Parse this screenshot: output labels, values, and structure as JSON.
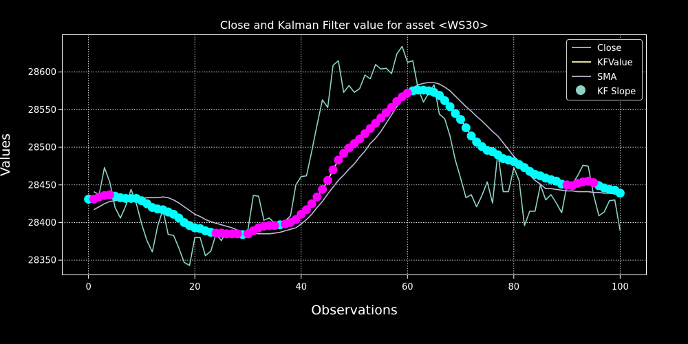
{
  "chart_data": {
    "type": "line",
    "title": "Close and Kalman Filter value for asset <WS30>",
    "xlabel": "Observations",
    "ylabel": "Values",
    "xlim": [
      -5,
      105
    ],
    "ylim": [
      28330,
      28650
    ],
    "xticks": [
      0,
      20,
      40,
      60,
      80,
      100
    ],
    "yticks": [
      28350,
      28400,
      28450,
      28500,
      28550,
      28600
    ],
    "grid": true,
    "legend_position": "top-right",
    "legend": [
      "Close",
      "KFValue",
      "SMA",
      "KF Slope"
    ],
    "colors": {
      "close": "#8dd3c7",
      "kfvalue": "#ffffb3",
      "sma": "#bebada",
      "slope_legend": "#8dd3c7",
      "slope_up": "#ff00ff",
      "slope_down": "#00ffff"
    },
    "series": [
      {
        "name": "Close",
        "x": [
          1,
          2,
          3,
          4,
          5,
          6,
          7,
          8,
          9,
          10,
          11,
          12,
          13,
          14,
          15,
          16,
          17,
          18,
          19,
          20,
          21,
          22,
          23,
          24,
          25,
          26,
          27,
          28,
          29,
          30,
          31,
          32,
          33,
          34,
          35,
          36,
          37,
          38,
          39,
          40,
          41,
          42,
          43,
          44,
          45,
          46,
          47,
          48,
          49,
          50,
          51,
          52,
          53,
          54,
          55,
          56,
          57,
          58,
          59,
          60,
          61,
          62,
          63,
          64,
          65,
          66,
          67,
          68,
          69,
          70,
          71,
          72,
          73,
          74,
          75,
          76,
          77,
          78,
          79,
          80,
          81,
          82,
          83,
          84,
          85,
          86,
          87,
          88,
          89,
          90,
          91,
          92,
          93,
          94,
          95,
          96,
          97,
          98,
          99,
          100
        ],
        "values": [
          28441,
          28437,
          28473,
          28454,
          28420,
          28406,
          28422,
          28444,
          28425,
          28398,
          28376,
          28361,
          28395,
          28417,
          28384,
          28383,
          28366,
          28347,
          28343,
          28380,
          28380,
          28356,
          28362,
          28385,
          28376,
          28389,
          28389,
          28384,
          28386,
          28391,
          28436,
          28435,
          28403,
          28406,
          28399,
          28395,
          28402,
          28409,
          28450,
          28461,
          28462,
          28495,
          28530,
          28563,
          28553,
          28609,
          28615,
          28573,
          28582,
          28573,
          28578,
          28596,
          28591,
          28610,
          28604,
          28605,
          28598,
          28624,
          28634,
          28613,
          28615,
          28578,
          28560,
          28572,
          28583,
          28544,
          28538,
          28515,
          28483,
          28459,
          28433,
          28437,
          28421,
          28436,
          28454,
          28426,
          28493,
          28441,
          28441,
          28473,
          28456,
          28396,
          28415,
          28415,
          28450,
          28430,
          28437,
          28426,
          28413,
          28450,
          28451,
          28462,
          28476,
          28475,
          28437,
          28409,
          28414,
          28429,
          28430,
          28389
        ]
      },
      {
        "name": "KFValue",
        "x": [
          0,
          1,
          2,
          3,
          4,
          5,
          6,
          7,
          8,
          9,
          10,
          11,
          12,
          13,
          14,
          15,
          16,
          17,
          18,
          19,
          20,
          21,
          22,
          23,
          24,
          25,
          26,
          27,
          28,
          29,
          30,
          31,
          32,
          33,
          34,
          35,
          36,
          37,
          38,
          39,
          40,
          41,
          42,
          43,
          44,
          45,
          46,
          47,
          48,
          49,
          50,
          51,
          52,
          53,
          54,
          55,
          56,
          57,
          58,
          59,
          60,
          61,
          62,
          63,
          64,
          65,
          66,
          67,
          68,
          69,
          70,
          71,
          72,
          73,
          74,
          75,
          76,
          77,
          78,
          79,
          80,
          81,
          82,
          83,
          84,
          85,
          86,
          87,
          88,
          89,
          90,
          91,
          92,
          93,
          94,
          95,
          96,
          97,
          98,
          99,
          100
        ],
        "values": [
          28431,
          28431,
          28434,
          28436,
          28437,
          28435,
          28433,
          28432,
          28432,
          28432,
          28429,
          28425,
          28420,
          28418,
          28417,
          28414,
          28411,
          28406,
          28400,
          28396,
          28393,
          28392,
          28389,
          28387,
          28386,
          28386,
          28385,
          28385,
          28385,
          28384,
          28385,
          28389,
          28393,
          28395,
          28396,
          28396,
          28397,
          28398,
          28400,
          28404,
          28411,
          28417,
          28425,
          28434,
          28444,
          28456,
          28470,
          28483,
          28492,
          28499,
          28505,
          28511,
          28518,
          28525,
          28532,
          28539,
          28546,
          28553,
          28561,
          28567,
          28572,
          28575,
          28576,
          28576,
          28575,
          28573,
          28569,
          28562,
          28554,
          28545,
          28537,
          28526,
          28515,
          28507,
          28501,
          28496,
          28494,
          28490,
          28485,
          28483,
          28481,
          28477,
          28473,
          28468,
          28464,
          28462,
          28459,
          28457,
          28455,
          28451,
          28450,
          28449,
          28452,
          28454,
          28455,
          28453,
          28449,
          28446,
          28444,
          28443,
          28439
        ]
      },
      {
        "name": "SMA",
        "x": [
          1,
          2,
          3,
          4,
          5,
          6,
          7,
          8,
          9,
          10,
          11,
          12,
          13,
          14,
          15,
          16,
          17,
          18,
          19,
          20,
          21,
          22,
          23,
          24,
          25,
          26,
          27,
          28,
          29,
          30,
          31,
          32,
          33,
          34,
          35,
          36,
          37,
          38,
          39,
          40,
          41,
          42,
          43,
          44,
          45,
          46,
          47,
          48,
          49,
          50,
          51,
          52,
          53,
          54,
          55,
          56,
          57,
          58,
          59,
          60,
          61,
          62,
          63,
          64,
          65,
          66,
          67,
          68,
          69,
          70,
          71,
          72,
          73,
          74,
          75,
          76,
          77,
          78,
          79,
          80,
          81,
          82,
          83,
          84,
          85,
          86,
          87,
          88,
          89,
          90,
          91,
          92,
          93,
          94,
          95,
          96,
          97,
          98,
          99,
          100
        ],
        "values": [
          28417,
          28421,
          28425,
          28428,
          28429,
          28430,
          28431,
          28431,
          28432,
          28432,
          28433,
          28433,
          28433,
          28434,
          28433,
          28430,
          28426,
          28421,
          28416,
          28411,
          28408,
          28404,
          28401,
          28399,
          28397,
          28395,
          28393,
          28390,
          28388,
          28387,
          28386,
          28385,
          28385,
          28385,
          28386,
          28387,
          28389,
          28391,
          28393,
          28398,
          28404,
          28411,
          28420,
          28428,
          28438,
          28447,
          28456,
          28463,
          28471,
          28478,
          28487,
          28495,
          28505,
          28512,
          28521,
          28532,
          28543,
          28554,
          28564,
          28573,
          28579,
          28583,
          28585,
          28586,
          28586,
          28584,
          28580,
          28575,
          28568,
          28561,
          28554,
          28548,
          28541,
          28535,
          28528,
          28521,
          28515,
          28506,
          28497,
          28488,
          28480,
          28471,
          28463,
          28456,
          28451,
          28445,
          28445,
          28444,
          28443,
          28442,
          28442,
          28441,
          28441,
          28441,
          28440,
          28440,
          28439,
          28439,
          28438,
          28438
        ]
      }
    ],
    "kf_slope": {
      "name": "KF Slope",
      "down_x": [
        0,
        5,
        6,
        7,
        8,
        9,
        10,
        11,
        12,
        13,
        14,
        15,
        16,
        17,
        18,
        19,
        20,
        21,
        22,
        23,
        29,
        36,
        61,
        62,
        63,
        64,
        65,
        66,
        67,
        68,
        69,
        70,
        71,
        72,
        73,
        74,
        75,
        76,
        77,
        78,
        79,
        80,
        81,
        82,
        83,
        84,
        85,
        86,
        87,
        88,
        89,
        96,
        97,
        98,
        99,
        100
      ],
      "up_x": [
        1,
        2,
        3,
        4,
        24,
        25,
        26,
        27,
        28,
        30,
        31,
        32,
        33,
        34,
        35,
        37,
        38,
        39,
        40,
        41,
        42,
        43,
        44,
        45,
        46,
        47,
        48,
        49,
        50,
        51,
        52,
        53,
        54,
        55,
        56,
        57,
        58,
        59,
        60,
        90,
        91,
        92,
        93,
        94,
        95
      ]
    }
  }
}
